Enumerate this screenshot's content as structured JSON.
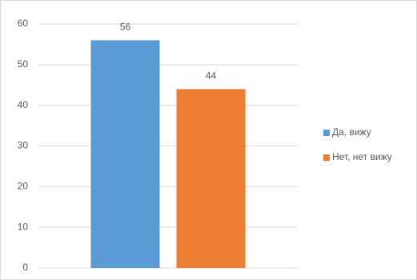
{
  "chart_data": {
    "type": "bar",
    "categories": [
      null
    ],
    "series": [
      {
        "name": "Да, вижу",
        "color": "#5b9bd5",
        "values": [
          56
        ]
      },
      {
        "name": "Нет, нет вижу",
        "color": "#ed7d31",
        "values": [
          44
        ]
      }
    ],
    "ylim": [
      0,
      60
    ],
    "yticks": [
      0,
      10,
      20,
      30,
      40,
      50,
      60
    ],
    "grid": true,
    "legend": "right"
  }
}
